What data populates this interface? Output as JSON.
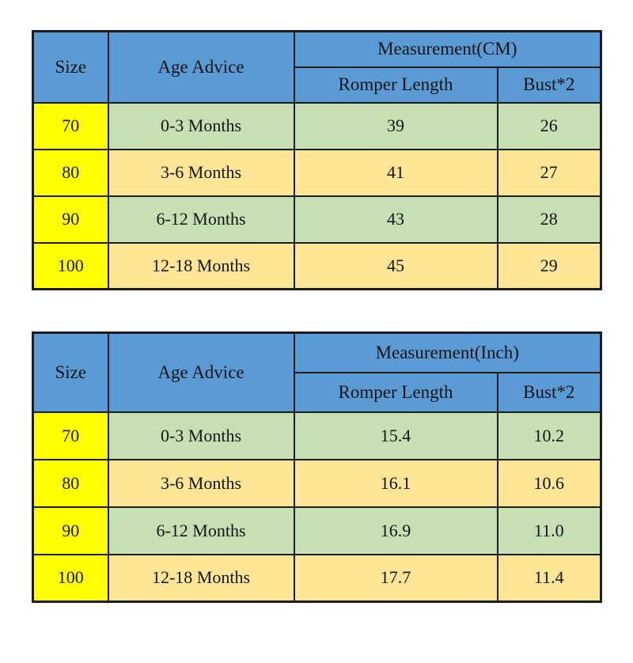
{
  "colors": {
    "header_blue": "#5b9bd5",
    "row_green": "#c6e0b4",
    "row_cream": "#ffe596",
    "size_yellow": "#ffff00",
    "border": "#1c1c1c",
    "text": "#141414"
  },
  "tables": [
    {
      "headers": {
        "size": "Size",
        "age": "Age Advice",
        "measurement": "Measurement(CM)",
        "romper_length": "Romper Length",
        "bust": "Bust*2"
      },
      "rows": [
        {
          "size": "70",
          "age": "0-3 Months",
          "length": "39",
          "bust": "26"
        },
        {
          "size": "80",
          "age": "3-6 Months",
          "length": "41",
          "bust": "27"
        },
        {
          "size": "90",
          "age": "6-12 Months",
          "length": "43",
          "bust": "28"
        },
        {
          "size": "100",
          "age": "12-18 Months",
          "length": "45",
          "bust": "29"
        }
      ]
    },
    {
      "headers": {
        "size": "Size",
        "age": "Age Advice",
        "measurement": "Measurement(Inch)",
        "romper_length": "Romper Length",
        "bust": "Bust*2"
      },
      "rows": [
        {
          "size": "70",
          "age": "0-3 Months",
          "length": "15.4",
          "bust": "10.2"
        },
        {
          "size": "80",
          "age": "3-6 Months",
          "length": "16.1",
          "bust": "10.6"
        },
        {
          "size": "90",
          "age": "6-12 Months",
          "length": "16.9",
          "bust": "11.0"
        },
        {
          "size": "100",
          "age": "12-18 Months",
          "length": "17.7",
          "bust": "11.4"
        }
      ]
    }
  ],
  "chart_data": [
    {
      "type": "table",
      "title": "Measurement(CM)",
      "columns": [
        "Size",
        "Age Advice",
        "Romper Length",
        "Bust*2"
      ],
      "rows": [
        [
          "70",
          "0-3 Months",
          39,
          26
        ],
        [
          "80",
          "3-6 Months",
          41,
          27
        ],
        [
          "90",
          "6-12 Months",
          43,
          28
        ],
        [
          "100",
          "12-18 Months",
          45,
          29
        ]
      ]
    },
    {
      "type": "table",
      "title": "Measurement(Inch)",
      "columns": [
        "Size",
        "Age Advice",
        "Romper Length",
        "Bust*2"
      ],
      "rows": [
        [
          "70",
          "0-3 Months",
          15.4,
          10.2
        ],
        [
          "80",
          "3-6 Months",
          16.1,
          10.6
        ],
        [
          "90",
          "6-12 Months",
          16.9,
          11.0
        ],
        [
          "100",
          "12-18 Months",
          17.7,
          11.4
        ]
      ]
    }
  ]
}
